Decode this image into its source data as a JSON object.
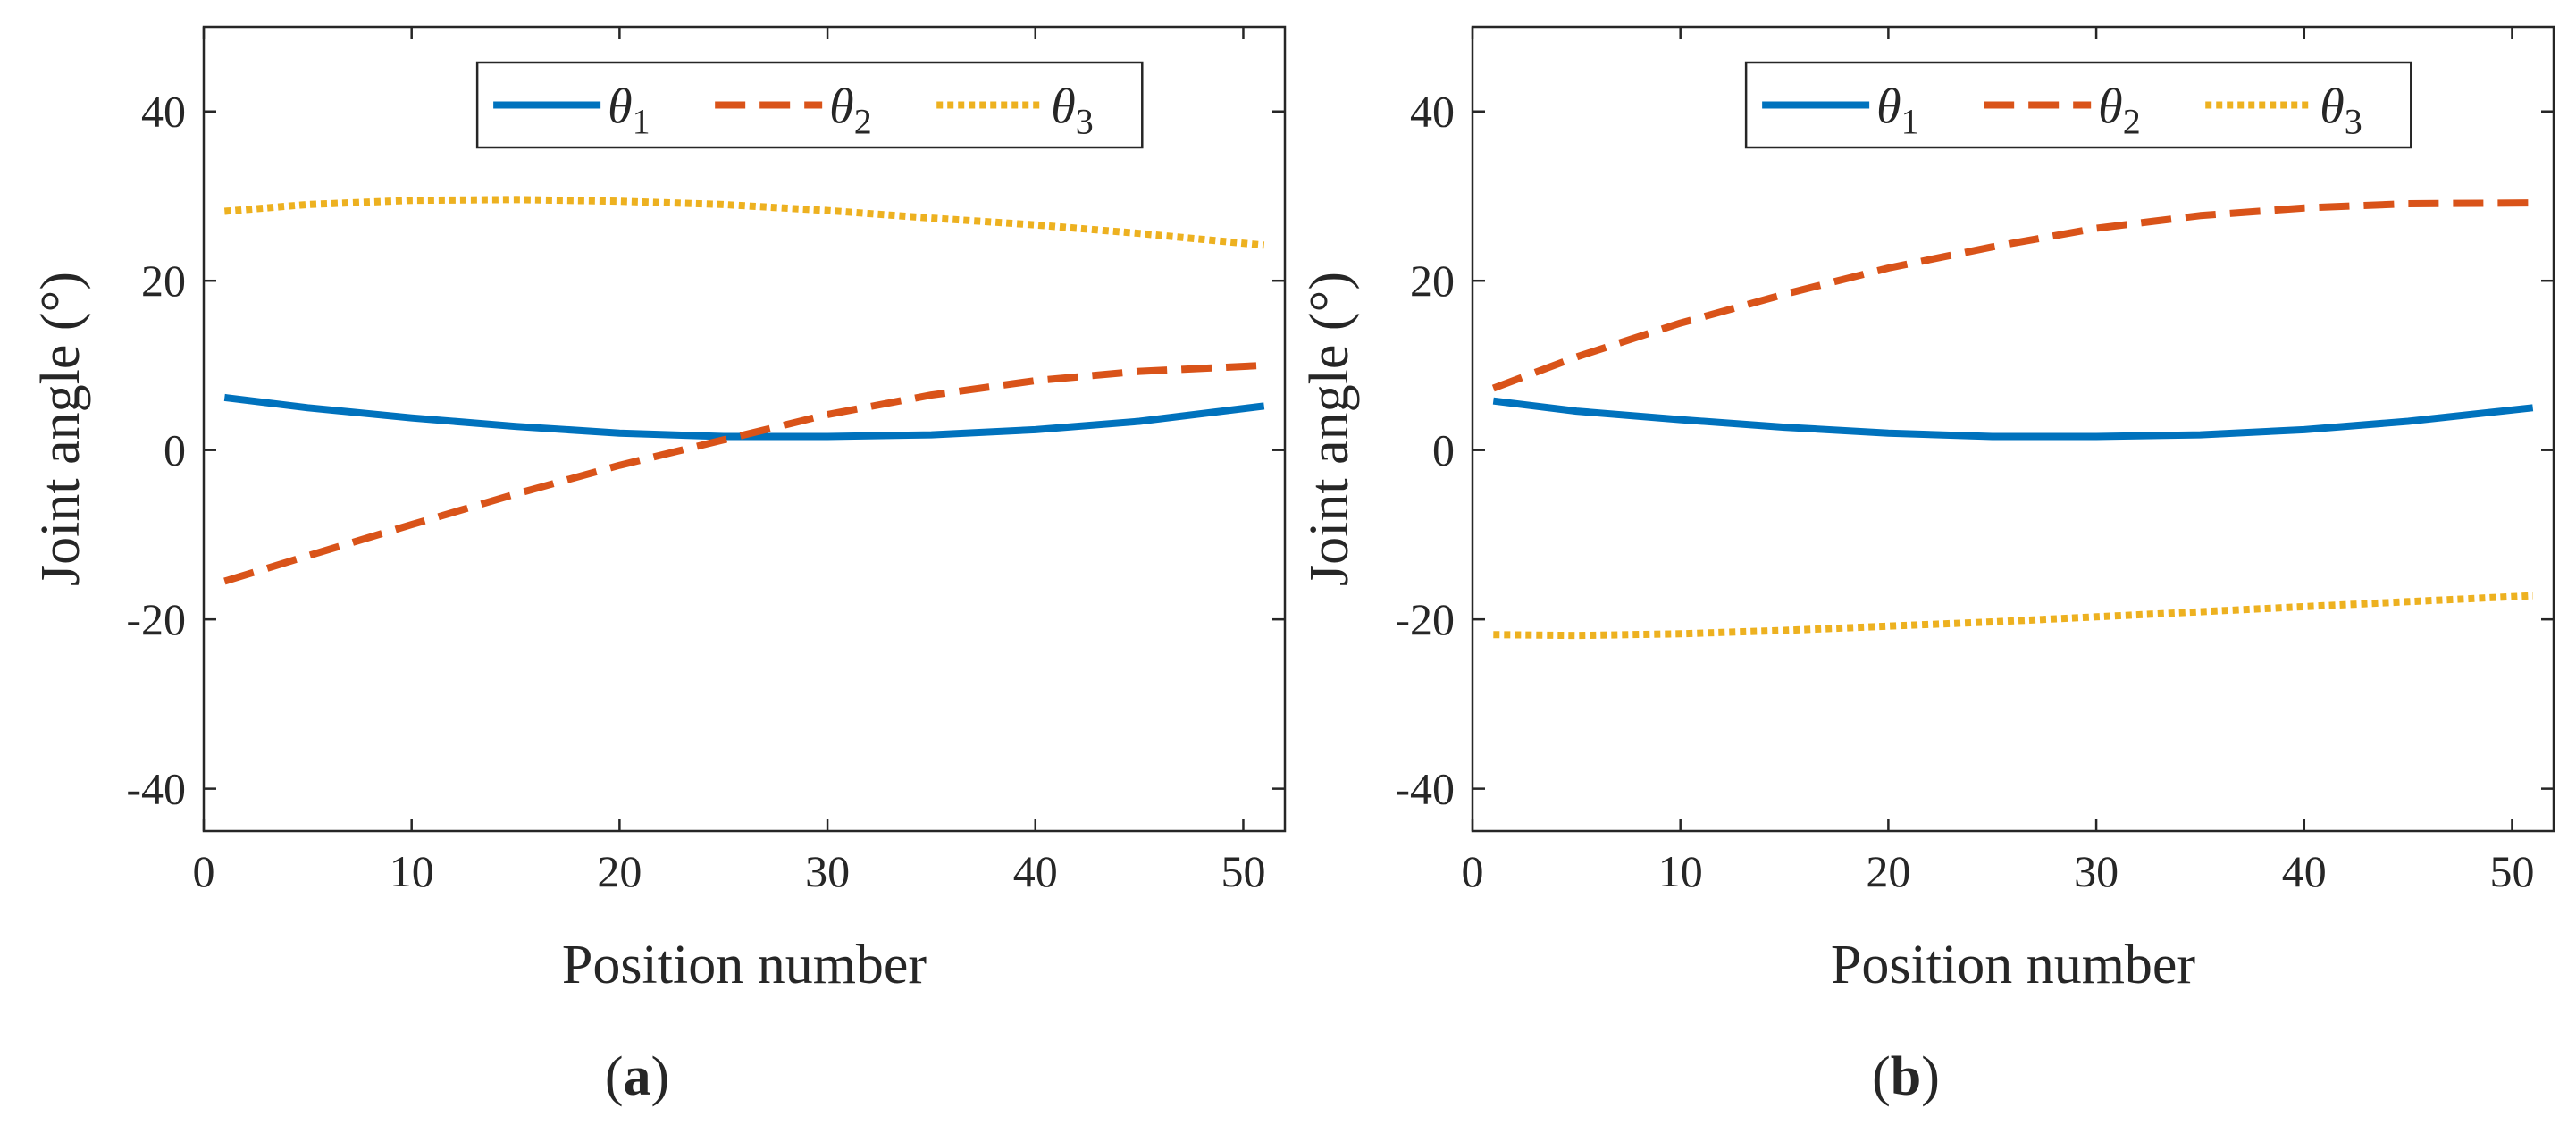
{
  "chart_data": [
    {
      "type": "line",
      "panel_label": "(a)",
      "panel_letter": "a",
      "xlabel": "Position number",
      "ylabel": "Joint angle (°)",
      "xlim": [
        0,
        52
      ],
      "ylim": [
        -45,
        50
      ],
      "xticks": [
        0,
        10,
        20,
        30,
        40,
        50
      ],
      "yticks": [
        -40,
        -20,
        0,
        20,
        40
      ],
      "ytick_labels": [
        "-40",
        "-20",
        "0",
        "20",
        "40"
      ],
      "legend_position": "top",
      "grid": false,
      "series": [
        {
          "name": "θ1",
          "symbol": "θ",
          "subscript": "1",
          "color": "#0072BD",
          "style": "solid",
          "x": [
            1,
            5,
            10,
            15,
            20,
            25,
            30,
            35,
            40,
            45,
            51
          ],
          "y": [
            6.2,
            5.0,
            3.8,
            2.8,
            2.0,
            1.6,
            1.6,
            1.8,
            2.4,
            3.4,
            5.2
          ]
        },
        {
          "name": "θ2",
          "symbol": "θ",
          "subscript": "2",
          "color": "#D95319",
          "style": "dashed",
          "x": [
            1,
            5,
            10,
            15,
            20,
            25,
            30,
            35,
            40,
            45,
            51
          ],
          "y": [
            -15.5,
            -12.5,
            -8.8,
            -5.2,
            -1.8,
            1.2,
            4.2,
            6.5,
            8.2,
            9.3,
            10.0
          ]
        },
        {
          "name": "θ3",
          "symbol": "θ",
          "subscript": "3",
          "color": "#EDB120",
          "style": "dotted",
          "x": [
            1,
            5,
            10,
            15,
            20,
            25,
            30,
            35,
            40,
            45,
            51
          ],
          "y": [
            28.2,
            29.0,
            29.5,
            29.6,
            29.4,
            29.0,
            28.3,
            27.4,
            26.6,
            25.6,
            24.2
          ]
        }
      ]
    },
    {
      "type": "line",
      "panel_label": "(b)",
      "panel_letter": "b",
      "xlabel": "Position number",
      "ylabel": "Joint angle (°)",
      "xlim": [
        0,
        52
      ],
      "ylim": [
        -45,
        50
      ],
      "xticks": [
        0,
        10,
        20,
        30,
        40,
        50
      ],
      "yticks": [
        -40,
        -20,
        0,
        20,
        40
      ],
      "ytick_labels": [
        "-40",
        "-20",
        "0",
        "20",
        "40"
      ],
      "legend_position": "top",
      "grid": false,
      "series": [
        {
          "name": "θ1",
          "symbol": "θ",
          "subscript": "1",
          "color": "#0072BD",
          "style": "solid",
          "x": [
            1,
            5,
            10,
            15,
            20,
            25,
            30,
            35,
            40,
            45,
            51
          ],
          "y": [
            5.8,
            4.6,
            3.6,
            2.7,
            2.0,
            1.6,
            1.6,
            1.8,
            2.4,
            3.4,
            5.0
          ]
        },
        {
          "name": "θ2",
          "symbol": "θ",
          "subscript": "2",
          "color": "#D95319",
          "style": "dashed",
          "x": [
            1,
            5,
            10,
            15,
            20,
            25,
            30,
            35,
            40,
            45,
            51
          ],
          "y": [
            7.3,
            11.0,
            15.0,
            18.4,
            21.5,
            24.0,
            26.2,
            27.7,
            28.6,
            29.1,
            29.2
          ]
        },
        {
          "name": "θ3",
          "symbol": "θ",
          "subscript": "3",
          "color": "#EDB120",
          "style": "dotted",
          "x": [
            1,
            5,
            10,
            15,
            20,
            25,
            30,
            35,
            40,
            45,
            51
          ],
          "y": [
            -21.8,
            -21.9,
            -21.7,
            -21.3,
            -20.8,
            -20.3,
            -19.7,
            -19.1,
            -18.5,
            -17.9,
            -17.2
          ]
        }
      ]
    }
  ]
}
